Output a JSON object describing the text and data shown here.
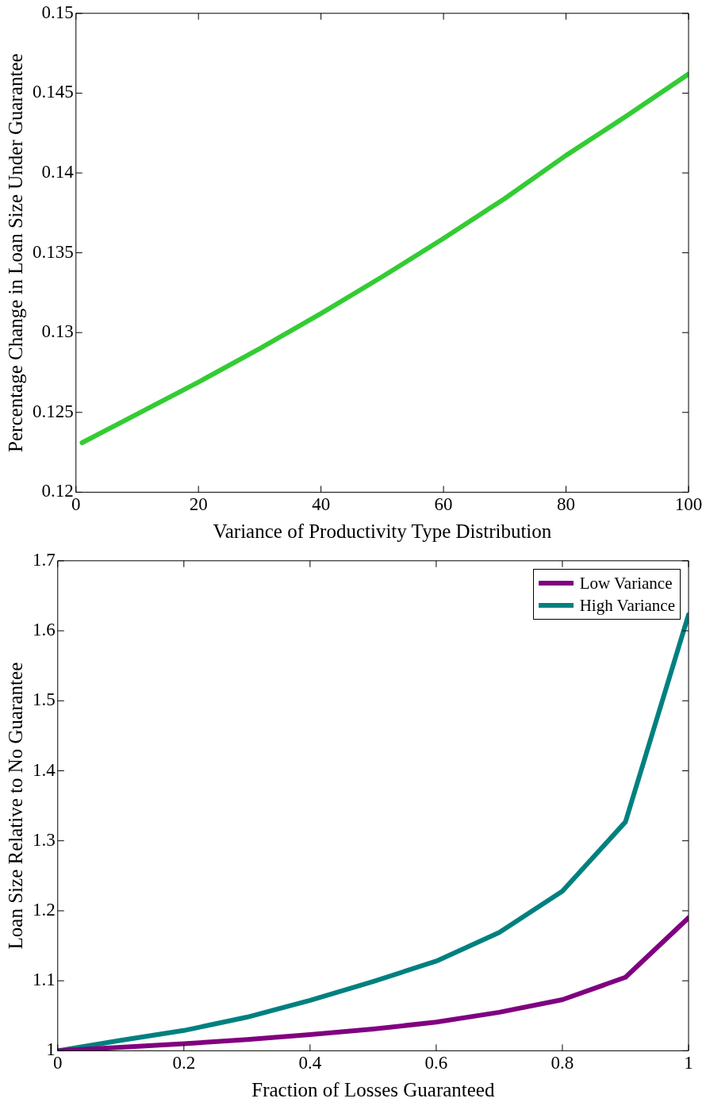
{
  "chart_data": [
    {
      "type": "line",
      "xlabel": "Variance of Productivity Type Distribution",
      "ylabel": "Percentage Change in Loan Size Under Guarantee",
      "x": [
        1,
        10,
        20,
        30,
        40,
        50,
        60,
        70,
        80,
        90,
        100
      ],
      "series": [
        {
          "color": "#33cc33",
          "values": [
            0.1231,
            0.1249,
            0.1269,
            0.129,
            0.1312,
            0.1335,
            0.1359,
            0.1384,
            0.1411,
            0.1436,
            0.1462
          ]
        }
      ],
      "xlim": [
        0,
        100
      ],
      "ylim": [
        0.12,
        0.15
      ],
      "xticks": [
        0,
        20,
        40,
        60,
        80,
        100
      ],
      "yticks": [
        0.12,
        0.125,
        0.13,
        0.135,
        0.14,
        0.145,
        0.15
      ],
      "grid": false,
      "legend": false,
      "marker": "none",
      "line_style": "solid"
    },
    {
      "type": "line",
      "xlabel": "Fraction of Losses Guaranteed",
      "ylabel": "Loan Size Relative to No Guarantee",
      "x": [
        0,
        0.1,
        0.2,
        0.3,
        0.4,
        0.5,
        0.6,
        0.7,
        0.8,
        0.9,
        1
      ],
      "series": [
        {
          "name": "Low Variance",
          "color": "#800080",
          "values": [
            1,
            1.005,
            1.01,
            1.016,
            1.023,
            1.031,
            1.041,
            1.055,
            1.073,
            1.105,
            1.19
          ]
        },
        {
          "name": "High Variance",
          "color": "#008080",
          "values": [
            1,
            1.015,
            1.029,
            1.048,
            1.072,
            1.099,
            1.128,
            1.169,
            1.228,
            1.327,
            1.623
          ]
        }
      ],
      "xlim": [
        0,
        1
      ],
      "ylim": [
        1,
        1.7
      ],
      "xticks": [
        0,
        0.2,
        0.4,
        0.6,
        0.8,
        1
      ],
      "yticks": [
        1,
        1.1,
        1.2,
        1.3,
        1.4,
        1.5,
        1.6,
        1.7
      ],
      "grid": false,
      "legend": "top right",
      "marker": "none",
      "line_style": "solid"
    }
  ]
}
